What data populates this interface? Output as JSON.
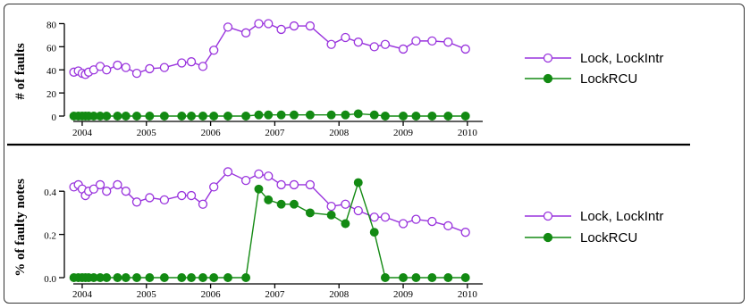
{
  "colors": {
    "lock": "#9933dd",
    "rcu": "#138a13"
  },
  "chart_data": [
    {
      "type": "line",
      "ylabel": "# of faults",
      "ylim": [
        0,
        85
      ],
      "yticks": [
        0,
        20,
        40,
        60,
        80
      ],
      "x_ticks": [
        "2004",
        "2005",
        "2006",
        "2007",
        "2008",
        "2009",
        "2010"
      ],
      "xlim": [
        2003.75,
        2010.35
      ],
      "series": [
        {
          "name": "Lock, LockIntr",
          "marker": "open-circle",
          "x": [
            2003.87,
            2003.94,
            2004.0,
            2004.05,
            2004.1,
            2004.18,
            2004.28,
            2004.38,
            2004.55,
            2004.68,
            2004.85,
            2005.05,
            2005.28,
            2005.55,
            2005.7,
            2005.88,
            2006.05,
            2006.27,
            2006.55,
            2006.75,
            2006.9,
            2007.1,
            2007.3,
            2007.55,
            2007.88,
            2008.1,
            2008.3,
            2008.55,
            2008.72,
            2009.0,
            2009.2,
            2009.45,
            2009.7,
            2009.97
          ],
          "values": [
            38,
            39,
            37,
            36,
            38,
            40,
            43,
            40,
            44,
            42,
            37,
            41,
            42,
            46,
            47,
            43,
            57,
            77,
            72,
            80,
            80,
            75,
            78,
            78,
            62,
            68,
            64,
            60,
            62,
            58,
            65,
            65,
            64,
            58
          ]
        },
        {
          "name": "LockRCU",
          "marker": "filled-circle",
          "x": [
            2003.87,
            2003.94,
            2004.0,
            2004.05,
            2004.1,
            2004.18,
            2004.28,
            2004.38,
            2004.55,
            2004.68,
            2004.85,
            2005.05,
            2005.28,
            2005.55,
            2005.7,
            2005.88,
            2006.05,
            2006.27,
            2006.55,
            2006.75,
            2006.9,
            2007.1,
            2007.3,
            2007.55,
            2007.88,
            2008.1,
            2008.3,
            2008.55,
            2008.72,
            2009.0,
            2009.2,
            2009.45,
            2009.7,
            2009.97
          ],
          "values": [
            0,
            0,
            0,
            0,
            0,
            0,
            0,
            0,
            0,
            0,
            0,
            0,
            0,
            0,
            0,
            0,
            0,
            0,
            0,
            1,
            1,
            1,
            1,
            1,
            1,
            1,
            2,
            1,
            0,
            0,
            0,
            0,
            0,
            0
          ]
        }
      ],
      "legend": "right"
    },
    {
      "type": "line",
      "ylabel": "% of faulty notes",
      "ylim": [
        0,
        0.5
      ],
      "yticks": [
        "0.0",
        "0.2",
        "0.4"
      ],
      "x_ticks": [
        "2004",
        "2005",
        "2006",
        "2007",
        "2008",
        "2009",
        "2010"
      ],
      "xlim": [
        2003.75,
        2010.35
      ],
      "series": [
        {
          "name": "Lock, LockIntr",
          "marker": "open-circle",
          "x": [
            2003.87,
            2003.94,
            2004.0,
            2004.05,
            2004.1,
            2004.18,
            2004.28,
            2004.38,
            2004.55,
            2004.68,
            2004.85,
            2005.05,
            2005.28,
            2005.55,
            2005.7,
            2005.88,
            2006.05,
            2006.27,
            2006.55,
            2006.75,
            2006.9,
            2007.1,
            2007.3,
            2007.55,
            2007.88,
            2008.1,
            2008.3,
            2008.55,
            2008.72,
            2009.0,
            2009.2,
            2009.45,
            2009.7,
            2009.97
          ],
          "values": [
            0.42,
            0.43,
            0.41,
            0.38,
            0.4,
            0.41,
            0.43,
            0.4,
            0.43,
            0.4,
            0.35,
            0.37,
            0.36,
            0.38,
            0.38,
            0.34,
            0.42,
            0.49,
            0.45,
            0.48,
            0.47,
            0.43,
            0.43,
            0.43,
            0.33,
            0.34,
            0.31,
            0.28,
            0.28,
            0.25,
            0.27,
            0.26,
            0.24,
            0.21
          ]
        },
        {
          "name": "LockRCU",
          "marker": "filled-circle",
          "x": [
            2003.87,
            2003.94,
            2004.0,
            2004.05,
            2004.1,
            2004.18,
            2004.28,
            2004.38,
            2004.55,
            2004.68,
            2004.85,
            2005.05,
            2005.28,
            2005.55,
            2005.7,
            2005.88,
            2006.05,
            2006.27,
            2006.55,
            2006.75,
            2006.9,
            2007.1,
            2007.3,
            2007.55,
            2007.88,
            2008.1,
            2008.3,
            2008.55,
            2008.72,
            2009.0,
            2009.2,
            2009.45,
            2009.7,
            2009.97
          ],
          "values": [
            0,
            0,
            0,
            0,
            0,
            0,
            0,
            0,
            0,
            0,
            0,
            0,
            0,
            0,
            0,
            0,
            0,
            0,
            0,
            0.41,
            0.36,
            0.34,
            0.34,
            0.3,
            0.29,
            0.25,
            0.44,
            0.21,
            0,
            0,
            0,
            0,
            0,
            0
          ]
        }
      ],
      "legend": "right"
    }
  ]
}
